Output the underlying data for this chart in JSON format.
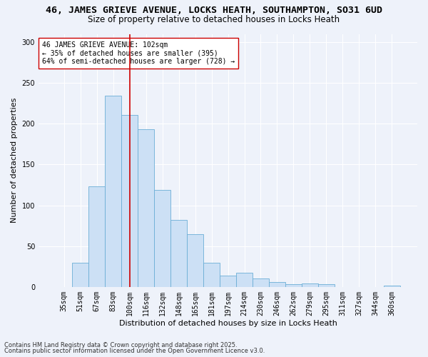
{
  "title_line1": "46, JAMES GRIEVE AVENUE, LOCKS HEATH, SOUTHAMPTON, SO31 6UD",
  "title_line2": "Size of property relative to detached houses in Locks Heath",
  "xlabel": "Distribution of detached houses by size in Locks Heath",
  "ylabel": "Number of detached properties",
  "bar_categories": [
    "35sqm",
    "51sqm",
    "67sqm",
    "83sqm",
    "100sqm",
    "116sqm",
    "132sqm",
    "148sqm",
    "165sqm",
    "181sqm",
    "197sqm",
    "214sqm",
    "230sqm",
    "246sqm",
    "262sqm",
    "279sqm",
    "295sqm",
    "311sqm",
    "327sqm",
    "344sqm",
    "360sqm"
  ],
  "bar_values": [
    0,
    30,
    123,
    234,
    211,
    193,
    119,
    82,
    65,
    30,
    14,
    17,
    10,
    6,
    3,
    4,
    3,
    0,
    0,
    0,
    2
  ],
  "bar_color": "#cce0f5",
  "bar_edge_color": "#6baed6",
  "vline_x_index": 4,
  "vline_color": "#cc0000",
  "annotation_text": "46 JAMES GRIEVE AVENUE: 102sqm\n← 35% of detached houses are smaller (395)\n64% of semi-detached houses are larger (728) →",
  "annotation_box_color": "#ffffff",
  "annotation_box_edge_color": "#cc0000",
  "ylim": [
    0,
    310
  ],
  "yticks": [
    0,
    50,
    100,
    150,
    200,
    250,
    300
  ],
  "background_color": "#eef2fa",
  "grid_color": "#ffffff",
  "footer_line1": "Contains HM Land Registry data © Crown copyright and database right 2025.",
  "footer_line2": "Contains public sector information licensed under the Open Government Licence v3.0.",
  "title_fontsize": 9.5,
  "subtitle_fontsize": 8.5,
  "axis_label_fontsize": 8,
  "tick_fontsize": 7,
  "annotation_fontsize": 7,
  "footer_fontsize": 6
}
